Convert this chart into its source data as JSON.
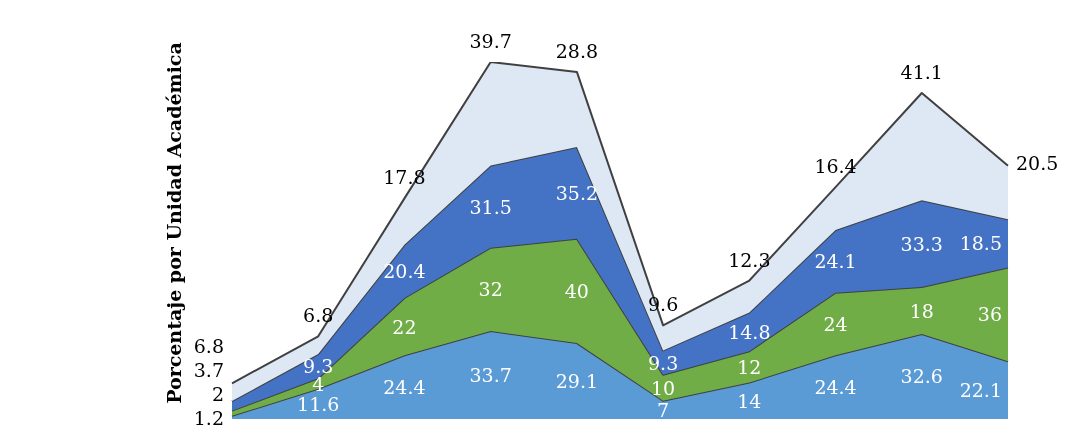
{
  "chart_data": {
    "type": "area",
    "stacked": true,
    "ylabel": "Porcentaje por Unidad Académica",
    "categories": [
      null,
      null,
      null,
      null,
      null,
      null,
      null,
      null,
      null,
      null
    ],
    "data_labels": true,
    "series": [
      {
        "color": "#5b9bd5",
        "values": [
          1.2,
          11.6,
          24.4,
          33.7,
          29.1,
          7,
          14,
          24.4,
          32.6,
          22.1
        ]
      },
      {
        "color": "#70ad47",
        "values": [
          2,
          4,
          22,
          32,
          40,
          10,
          12,
          24,
          18,
          36
        ]
      },
      {
        "color": "#4472c4",
        "values": [
          3.7,
          9.3,
          20.4,
          31.5,
          35.2,
          9.3,
          14.8,
          24.1,
          33.3,
          18.5
        ]
      },
      {
        "color": "#dde8f4",
        "values": [
          6.8,
          6.8,
          17.8,
          39.7,
          28.8,
          9.6,
          12.3,
          16.4,
          41.1,
          20.5
        ]
      }
    ]
  }
}
